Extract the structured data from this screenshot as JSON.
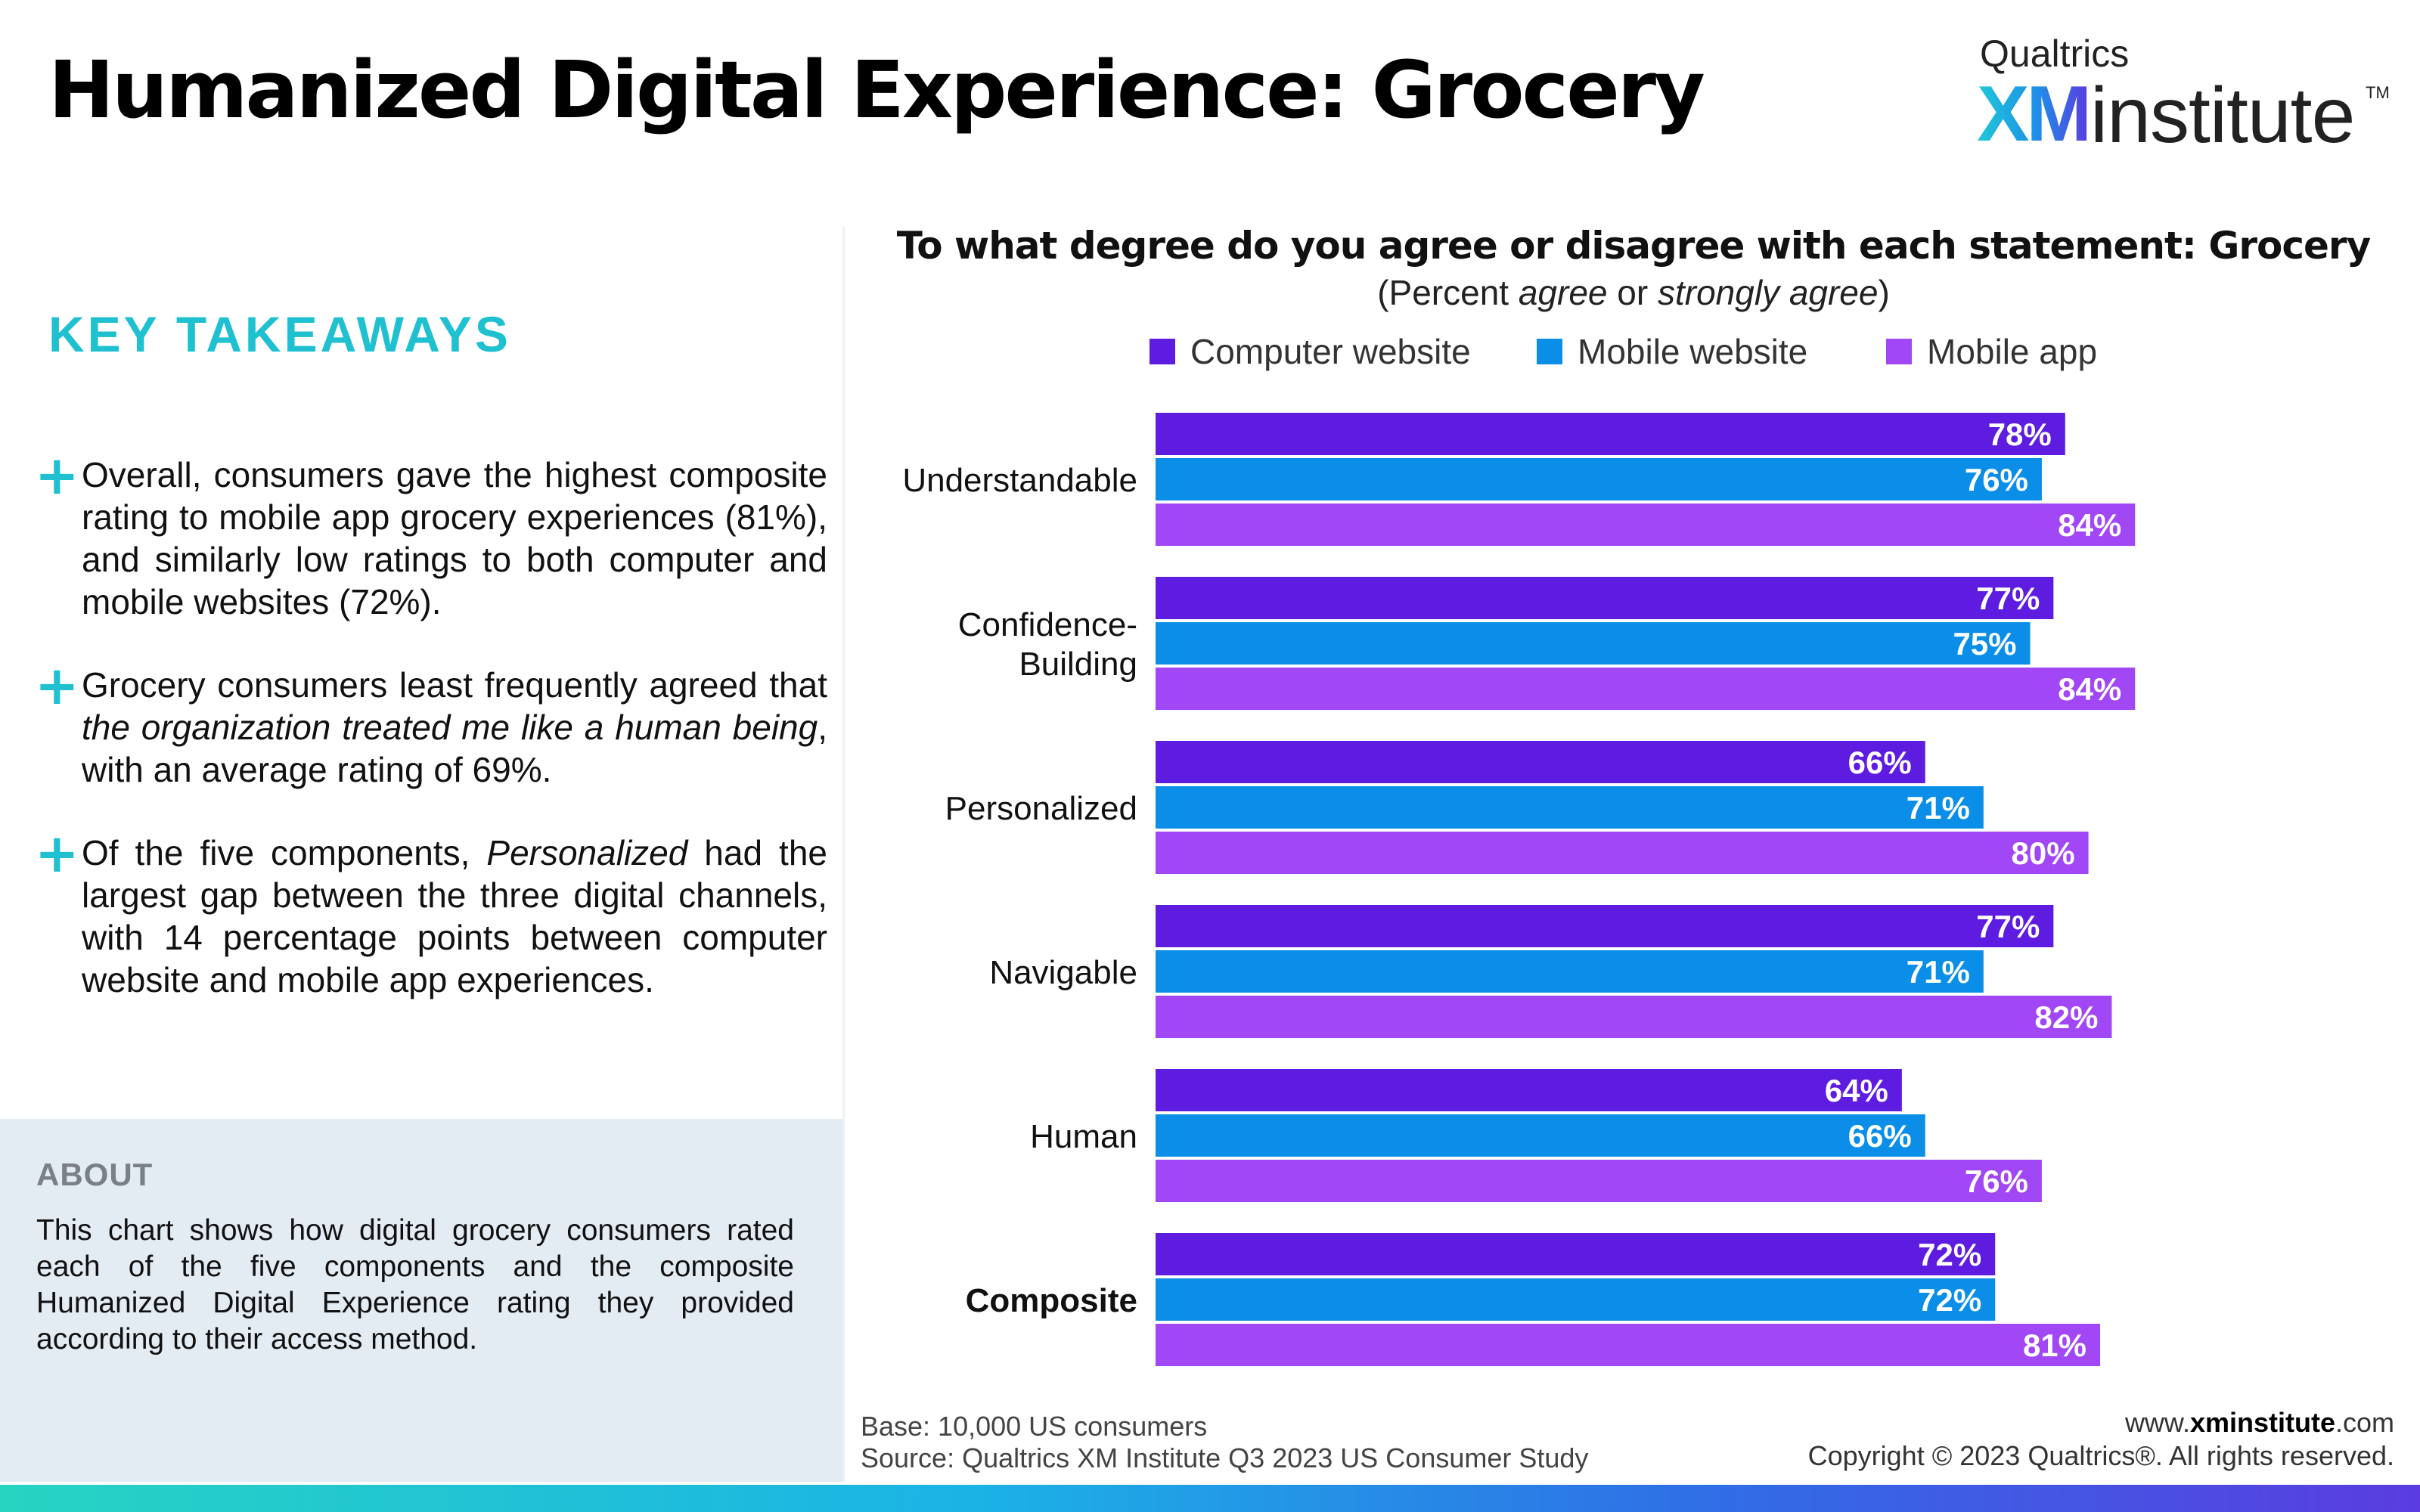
{
  "header": {
    "title": "Humanized Digital Experience: Grocery",
    "logo": {
      "brand": "Qualtrics",
      "xm": "XM",
      "institute": "institute",
      "tm": "TM"
    }
  },
  "takeaways": {
    "title": "KEY TAKEAWAYS",
    "items": [
      "Overall, consumers gave the highest composite rating to mobile app grocery experiences (81%), and similarly low ratings to both computer and mobile websites (72%).",
      "Grocery consumers least frequently agreed that the organization treated me like a human being, with an average rating of 69%.",
      "Of the five components, Personalized had the largest gap between the three digital channels, with 14 percentage points between computer website and mobile app experiences."
    ],
    "italic_phrases": [
      "the organization treated me like a human being",
      "Personalized"
    ]
  },
  "about": {
    "title": "ABOUT",
    "text": "This chart shows how digital grocery consumers rated each of the five components and the composite Humanized Digital Experience rating they provided according to their access method."
  },
  "chart_data": {
    "type": "bar",
    "orientation": "horizontal",
    "title": "To what degree do you agree or disagree with each statement: Grocery",
    "subtitle": "(Percent agree or strongly agree)",
    "categories": [
      "Understandable",
      "Confidence-Building",
      "Personalized",
      "Navigable",
      "Human",
      "Composite"
    ],
    "category_lines": [
      [
        "Understandable"
      ],
      [
        "Confidence-",
        "Building"
      ],
      [
        "Personalized"
      ],
      [
        "Navigable"
      ],
      [
        "Human"
      ],
      [
        "Composite"
      ]
    ],
    "bold_categories": [
      "Composite"
    ],
    "series": [
      {
        "name": "Computer website",
        "color": "#5e1ce0",
        "values": [
          78,
          77,
          66,
          77,
          64,
          72
        ]
      },
      {
        "name": "Mobile website",
        "color": "#0a8ee8",
        "values": [
          76,
          75,
          71,
          71,
          66,
          72
        ]
      },
      {
        "name": "Mobile app",
        "color": "#a247f5",
        "values": [
          84,
          84,
          80,
          82,
          76,
          81
        ]
      }
    ],
    "value_suffix": "%",
    "xlim": [
      0,
      100
    ],
    "legend_position": "top",
    "grid": false
  },
  "footer": {
    "base": "Base: 10,000 US consumers",
    "source": "Source: Qualtrics XM Institute Q3 2023 US Consumer Study",
    "url_prefix": "www.",
    "url_bold": "xminstitute",
    "url_suffix": ".com",
    "copyright": "Copyright © 2023 Qualtrics®. All rights reserved."
  }
}
